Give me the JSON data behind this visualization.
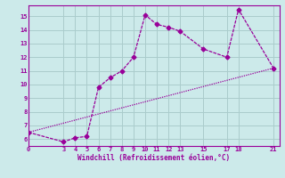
{
  "xlabel": "Windchill (Refroidissement éolien,°C)",
  "background_color": "#cceaea",
  "grid_color": "#aacccc",
  "line_color": "#990099",
  "line1_x": [
    0,
    3,
    4,
    5,
    6,
    7,
    8,
    9,
    10,
    11,
    12,
    13,
    15,
    17,
    18,
    21
  ],
  "line1_y": [
    6.5,
    5.8,
    6.1,
    6.2,
    9.8,
    10.5,
    11.0,
    12.0,
    15.1,
    14.4,
    14.2,
    13.9,
    12.6,
    12.0,
    15.5,
    11.2
  ],
  "line2_x": [
    0,
    21
  ],
  "line2_y": [
    6.5,
    11.2
  ],
  "xlim": [
    0,
    21.5
  ],
  "ylim": [
    5.5,
    15.8
  ],
  "xticks": [
    0,
    3,
    4,
    5,
    6,
    7,
    8,
    9,
    10,
    11,
    12,
    13,
    15,
    17,
    18,
    21
  ],
  "yticks": [
    6,
    7,
    8,
    9,
    10,
    11,
    12,
    13,
    14,
    15
  ],
  "marker": "D",
  "marker_size": 2.5,
  "line_width": 0.9
}
